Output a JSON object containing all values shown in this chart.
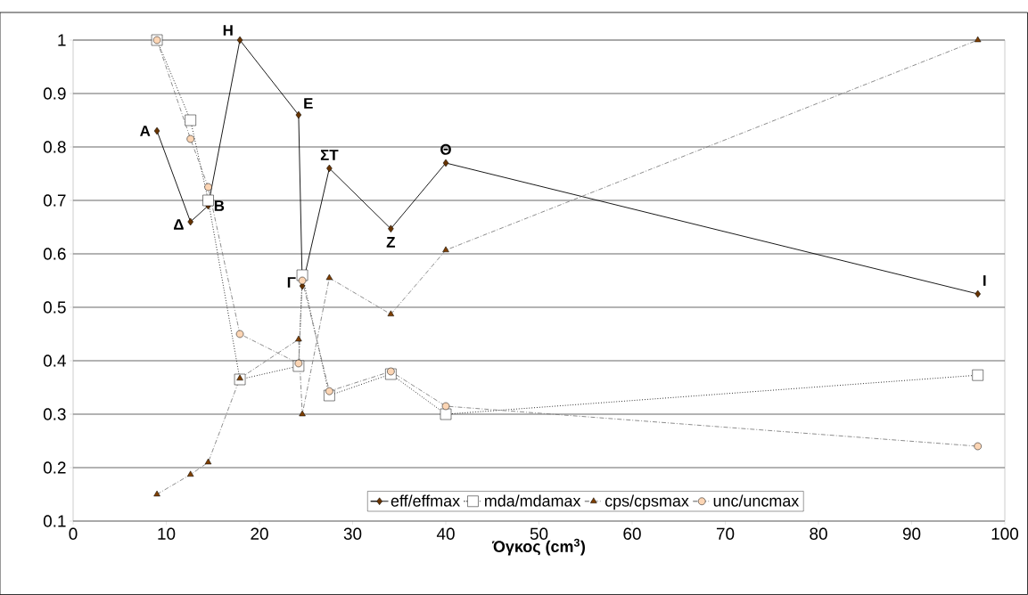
{
  "chart_data": {
    "type": "line",
    "xlabel": "Όγκος (cm$^{3}$)",
    "xlim": [
      0,
      100
    ],
    "ylim": [
      0.1,
      1
    ],
    "xticks": [
      0,
      10,
      20,
      30,
      40,
      50,
      60,
      70,
      80,
      90,
      100
    ],
    "yticks": [
      0.1,
      0.2,
      0.3,
      0.4,
      0.5,
      0.6,
      0.7,
      0.8,
      0.9,
      1
    ],
    "grid": "y",
    "legend": "bottom",
    "series": [
      {
        "name": "eff/effmax",
        "color": "#663300",
        "marker": "diamond",
        "line_style": "solid",
        "x": [
          9,
          12.6,
          14.5,
          17.9,
          24.2,
          24.6,
          27.5,
          34.1,
          40,
          97.1
        ],
        "values": [
          0.83,
          0.66,
          0.69,
          1.0,
          0.86,
          0.54,
          0.76,
          0.647,
          0.77,
          0.525
        ]
      },
      {
        "name": "mda/mdamax",
        "color": "#ffffff",
        "marker": "square",
        "line_style": "dotted",
        "x": [
          9,
          12.6,
          14.5,
          17.9,
          24.2,
          24.6,
          27.5,
          34.1,
          40,
          97.1
        ],
        "values": [
          1.0,
          0.85,
          0.7,
          0.365,
          0.39,
          0.56,
          0.335,
          0.375,
          0.3,
          0.373
        ]
      },
      {
        "name": "cps/cpsmax",
        "color": "#7f3f00",
        "marker": "triangle",
        "line_style": "dashed",
        "x": [
          9,
          12.6,
          14.5,
          17.9,
          24.2,
          24.6,
          27.5,
          34.1,
          40,
          97.1
        ],
        "values": [
          0.15,
          0.187,
          0.21,
          0.367,
          0.44,
          0.3,
          0.555,
          0.487,
          0.607,
          1.0
        ]
      },
      {
        "name": "unc/uncmax",
        "color": "#fcd5b4",
        "marker": "circle",
        "line_style": "dashed",
        "x": [
          9,
          12.6,
          14.5,
          17.9,
          24.2,
          24.6,
          27.5,
          34.1,
          40,
          97.1
        ],
        "values": [
          1.0,
          0.815,
          0.725,
          0.45,
          0.395,
          0.55,
          0.343,
          0.38,
          0.315,
          0.24
        ]
      }
    ],
    "annotations": [
      {
        "text": "Α",
        "x": 9,
        "y": 0.83
      },
      {
        "text": "Δ",
        "x": 12.6,
        "y": 0.66
      },
      {
        "text": "Β",
        "x": 14.5,
        "y": 0.69
      },
      {
        "text": "Η",
        "x": 17.9,
        "y": 1.0
      },
      {
        "text": "Ε",
        "x": 24.2,
        "y": 0.86
      },
      {
        "text": "Γ",
        "x": 24.6,
        "y": 0.54
      },
      {
        "text": "ΣΤ",
        "x": 27.5,
        "y": 0.76
      },
      {
        "text": "Ζ",
        "x": 34.1,
        "y": 0.647
      },
      {
        "text": "Θ",
        "x": 40,
        "y": 0.77
      },
      {
        "text": "Ι",
        "x": 97.1,
        "y": 0.525
      }
    ]
  }
}
